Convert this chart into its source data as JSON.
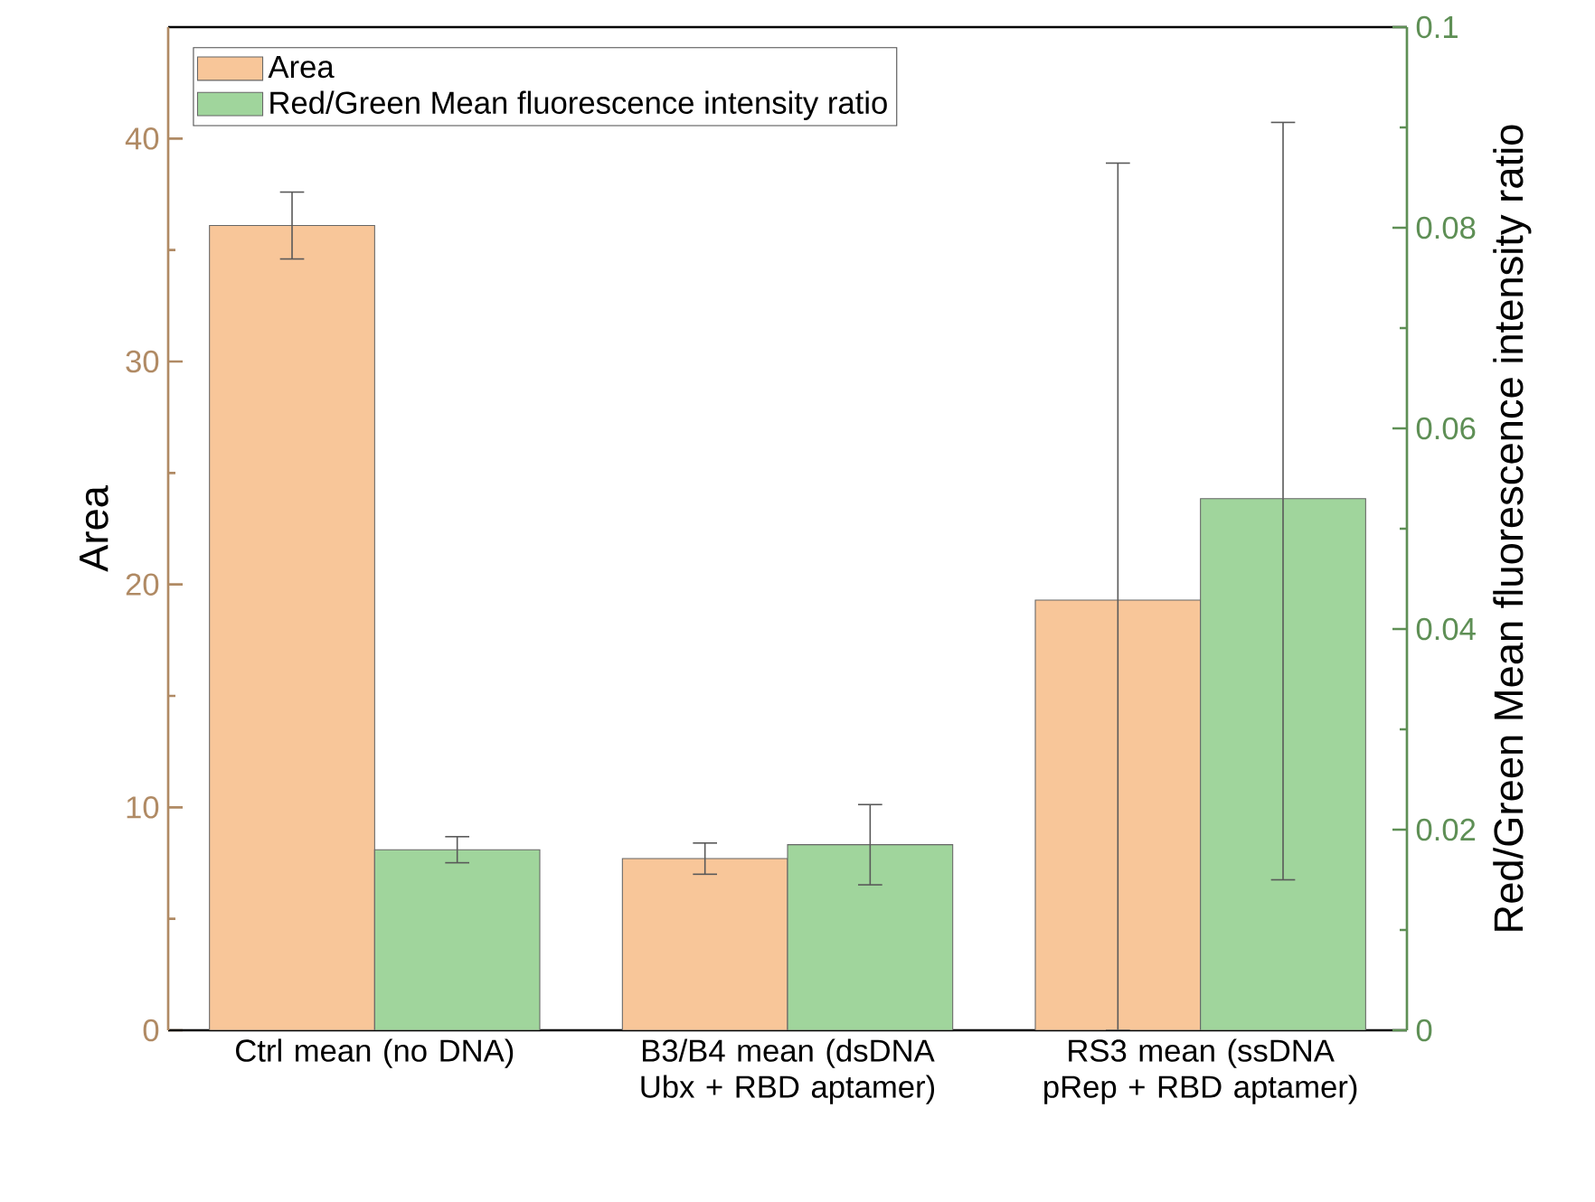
{
  "chart_data": {
    "type": "bar",
    "categories": [
      "Ctrl mean (no DNA)",
      "B3/B4 mean (dsDNA Ubx + RBD aptamer)",
      "RS3 mean (ssDNA pRep + RBD aptamer)"
    ],
    "ylabel": "Area",
    "y2label": "Red/Green Mean fluorescence intensity ratio",
    "ylim": [
      0,
      45
    ],
    "yticks": [
      0,
      10,
      20,
      30,
      40
    ],
    "y2lim": [
      0,
      0.1
    ],
    "y2ticks": [
      0,
      0.02,
      0.04,
      0.06,
      0.08,
      0.1
    ],
    "legend": "top left",
    "series": [
      {
        "name": "Area",
        "color": "#f8c699",
        "values": [
          36.1,
          7.7,
          19.3
        ],
        "errors": [
          1.5,
          0.7,
          [
            0,
            38.9
          ]
        ]
      },
      {
        "name": "Red/Green Mean fluorescence intensity ratio",
        "color": "#a0d59c",
        "axis": "y2",
        "values": [
          0.018,
          0.0185,
          0.053
        ],
        "errors": [
          0.0013,
          0.004,
          [
            0.015,
            0.0905
          ]
        ]
      }
    ]
  }
}
